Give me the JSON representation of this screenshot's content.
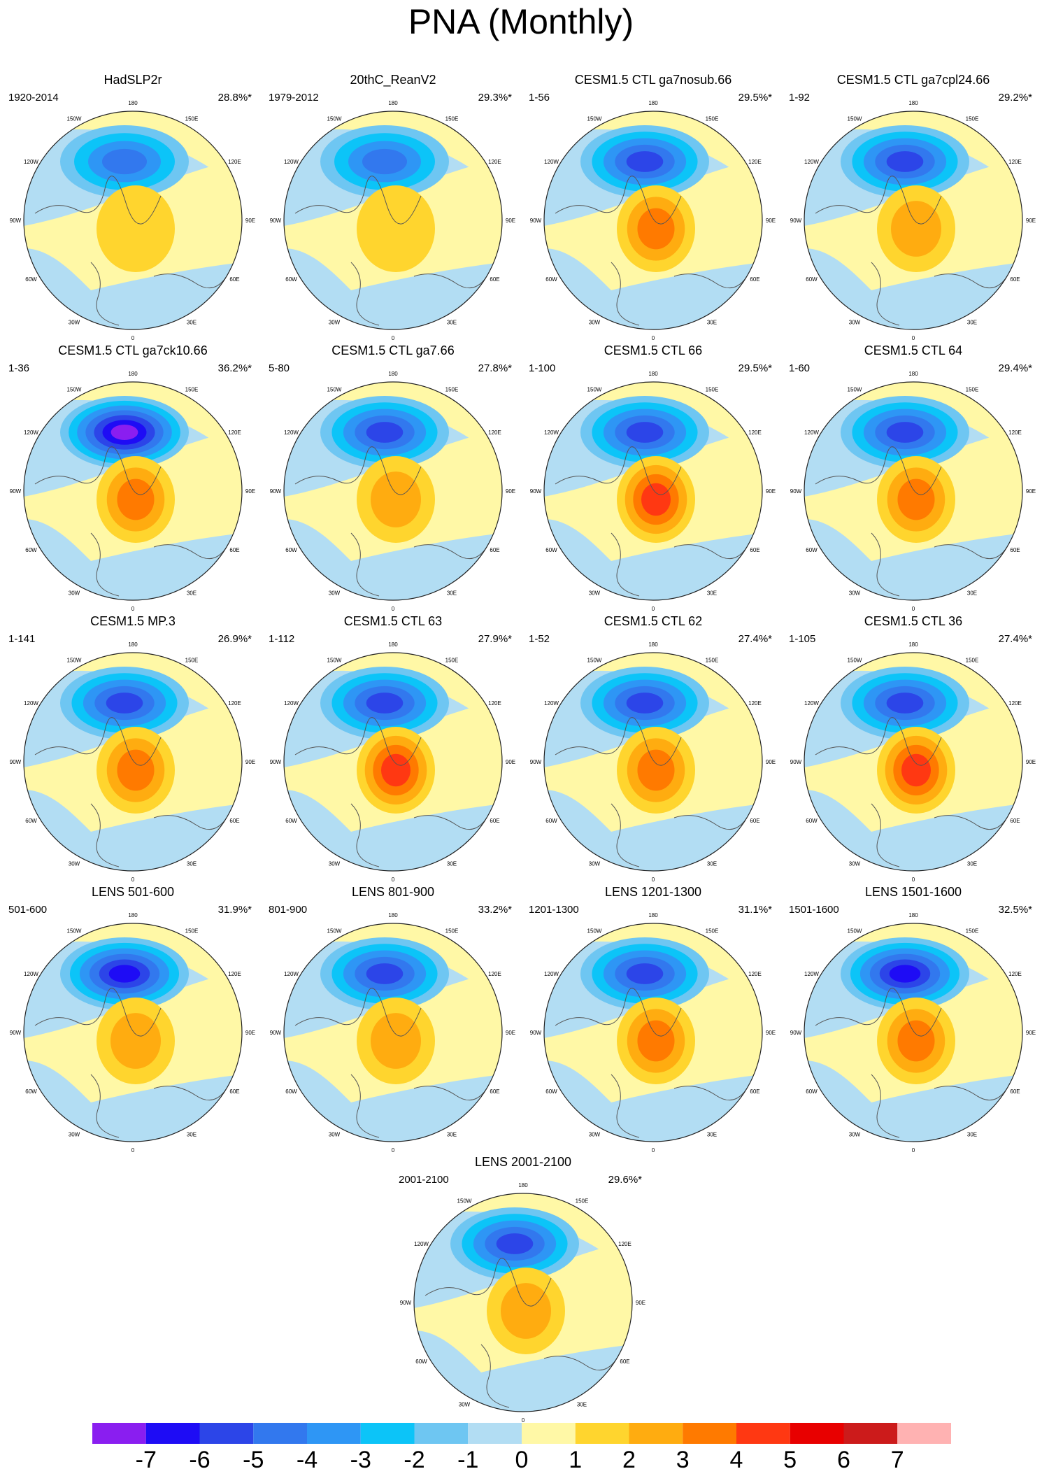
{
  "title": "PNA (Monthly)",
  "chart_data": {
    "type": "heatmap",
    "description": "North polar stereographic maps of the monthly PNA sea-level-pressure pattern; each panel gives the period/years and explained variance.",
    "panels": [
      {
        "title": "HadSLP2r",
        "years": "1920-2014",
        "variance": "28.8%*",
        "low_peak": -4,
        "high_peak": 1.5
      },
      {
        "title": "20thC_ReanV2",
        "years": "1979-2012",
        "variance": "29.3%*",
        "low_peak": -4.5,
        "high_peak": 1.5
      },
      {
        "title": "CESM1.5 CTL ga7nosub.66",
        "years": "1-56",
        "variance": "29.5%*",
        "low_peak": -5.5,
        "high_peak": 3
      },
      {
        "title": "CESM1.5 CTL ga7cpl24.66",
        "years": "1-92",
        "variance": "29.2%*",
        "low_peak": -5.5,
        "high_peak": 2
      },
      {
        "title": "CESM1.5 CTL ga7ck10.66",
        "years": "1-36",
        "variance": "36.2%*",
        "low_peak": -7,
        "high_peak": 3.5
      },
      {
        "title": "CESM1.5 CTL ga7.66",
        "years": "5-80",
        "variance": "27.8%*",
        "low_peak": -5.5,
        "high_peak": 2.5
      },
      {
        "title": "CESM1.5 CTL 66",
        "years": "1-100",
        "variance": "29.5%*",
        "low_peak": -5.5,
        "high_peak": 4
      },
      {
        "title": "CESM1.5 CTL 64",
        "years": "1-60",
        "variance": "29.4%*",
        "low_peak": -5.5,
        "high_peak": 3.5
      },
      {
        "title": "CESM1.5 MP.3",
        "years": "1-141",
        "variance": "26.9%*",
        "low_peak": -5.5,
        "high_peak": 3.5
      },
      {
        "title": "CESM1.5 CTL 63",
        "years": "1-112",
        "variance": "27.9%*",
        "low_peak": -5.5,
        "high_peak": 4
      },
      {
        "title": "CESM1.5 CTL 62",
        "years": "1-52",
        "variance": "27.4%*",
        "low_peak": -5.5,
        "high_peak": 3.5
      },
      {
        "title": "CESM1.5 CTL 36",
        "years": "1-105",
        "variance": "27.4%*",
        "low_peak": -5.5,
        "high_peak": 4
      },
      {
        "title": "LENS 501-600",
        "years": "501-600",
        "variance": "31.9%*",
        "low_peak": -6,
        "high_peak": 2.5
      },
      {
        "title": "LENS 801-900",
        "years": "801-900",
        "variance": "33.2%*",
        "low_peak": -5.5,
        "high_peak": 2.5
      },
      {
        "title": "LENS 1201-1300",
        "years": "1201-1300",
        "variance": "31.1%*",
        "low_peak": -5.5,
        "high_peak": 3
      },
      {
        "title": "LENS 1501-1600",
        "years": "1501-1600",
        "variance": "32.5%*",
        "low_peak": -6,
        "high_peak": 3
      },
      {
        "title": "LENS 2001-2100",
        "years": "2001-2100",
        "variance": "29.6%*",
        "low_peak": -5.5,
        "high_peak": 2.5
      }
    ],
    "longitude_labels": [
      "180",
      "150E",
      "120E",
      "90E",
      "60E",
      "30E",
      "0",
      "30W",
      "60W",
      "90W",
      "120W",
      "150W"
    ],
    "colorbar": {
      "labels": [
        "-7",
        "-6",
        "-5",
        "-4",
        "-3",
        "-2",
        "-1",
        "0",
        "1",
        "2",
        "3",
        "4",
        "5",
        "6",
        "7"
      ],
      "colors": [
        "#8a1ef0",
        "#1e0cf5",
        "#2c45e8",
        "#3278ee",
        "#2e96f5",
        "#0cc4f8",
        "#6ec6f2",
        "#b2ddf3",
        "#fff8a6",
        "#ffd52e",
        "#ffac10",
        "#ff7a00",
        "#ff3812",
        "#e80000",
        "#cc1b1b",
        "#ffb2b2"
      ]
    }
  }
}
